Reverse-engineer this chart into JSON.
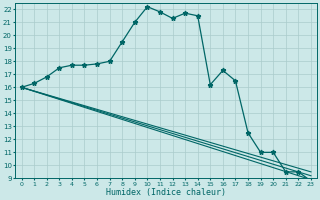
{
  "xlabel": "Humidex (Indice chaleur)",
  "xlim": [
    -0.5,
    23.5
  ],
  "ylim": [
    9,
    22.5
  ],
  "yticks": [
    9,
    10,
    11,
    12,
    13,
    14,
    15,
    16,
    17,
    18,
    19,
    20,
    21,
    22
  ],
  "xticks": [
    0,
    1,
    2,
    3,
    4,
    5,
    6,
    7,
    8,
    9,
    10,
    11,
    12,
    13,
    14,
    15,
    16,
    17,
    18,
    19,
    20,
    21,
    22,
    23
  ],
  "bg_color": "#cce8e8",
  "line_color": "#006666",
  "grid_color": "#aacccc",
  "line1_x": [
    0,
    1,
    2,
    3,
    4,
    5,
    6,
    7,
    8,
    9,
    10,
    11,
    12,
    13,
    14,
    15,
    16,
    17,
    18,
    19,
    20,
    21,
    22,
    23
  ],
  "line1_y": [
    16.0,
    16.3,
    16.8,
    17.5,
    17.7,
    17.7,
    17.8,
    18.0,
    19.5,
    21.0,
    22.2,
    21.8,
    21.3,
    21.7,
    21.5,
    16.2,
    17.3,
    16.5,
    12.5,
    11.0,
    11.0,
    9.5,
    9.5,
    8.8
  ],
  "line2_x": [
    0,
    23
  ],
  "line2_y": [
    16.0,
    9.5
  ],
  "line3_x": [
    0,
    23
  ],
  "line3_y": [
    16.0,
    9.2
  ],
  "line4_x": [
    0,
    23
  ],
  "line4_y": [
    16.0,
    8.9
  ]
}
